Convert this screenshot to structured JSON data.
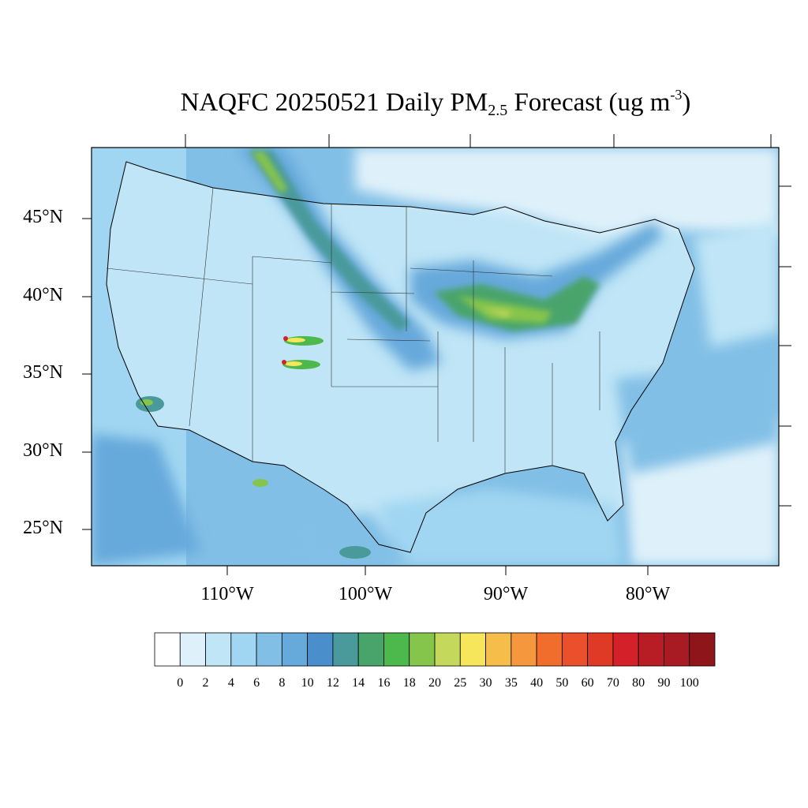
{
  "title": {
    "main": "NAQFC 20250521 Daily PM",
    "sub": "2.5",
    "after": " Forecast (ug m",
    "sup": "-3",
    "close": ")"
  },
  "map": {
    "lat_labels": [
      "45°N",
      "40°N",
      "35°N",
      "30°N",
      "25°N"
    ],
    "lon_labels": [
      "110°W",
      "100°W",
      "90°W",
      "80°W"
    ]
  },
  "colorbar": {
    "labels": [
      "0",
      "2",
      "4",
      "6",
      "8",
      "10",
      "12",
      "14",
      "16",
      "18",
      "20",
      "25",
      "30",
      "35",
      "40",
      "50",
      "60",
      "70",
      "80",
      "90",
      "100"
    ],
    "colors": [
      "#ffffff",
      "#def1fa",
      "#bfe5f6",
      "#a0d6f1",
      "#82bfe6",
      "#66a9db",
      "#4a8fcb",
      "#4a9a9b",
      "#49a46c",
      "#4db84b",
      "#86c54c",
      "#c4d85b",
      "#f5e65b",
      "#f7bd4a",
      "#f5973d",
      "#f06d2c",
      "#e9502b",
      "#df3a26",
      "#d42129",
      "#b81d25",
      "#a91b22",
      "#8e1519"
    ]
  }
}
